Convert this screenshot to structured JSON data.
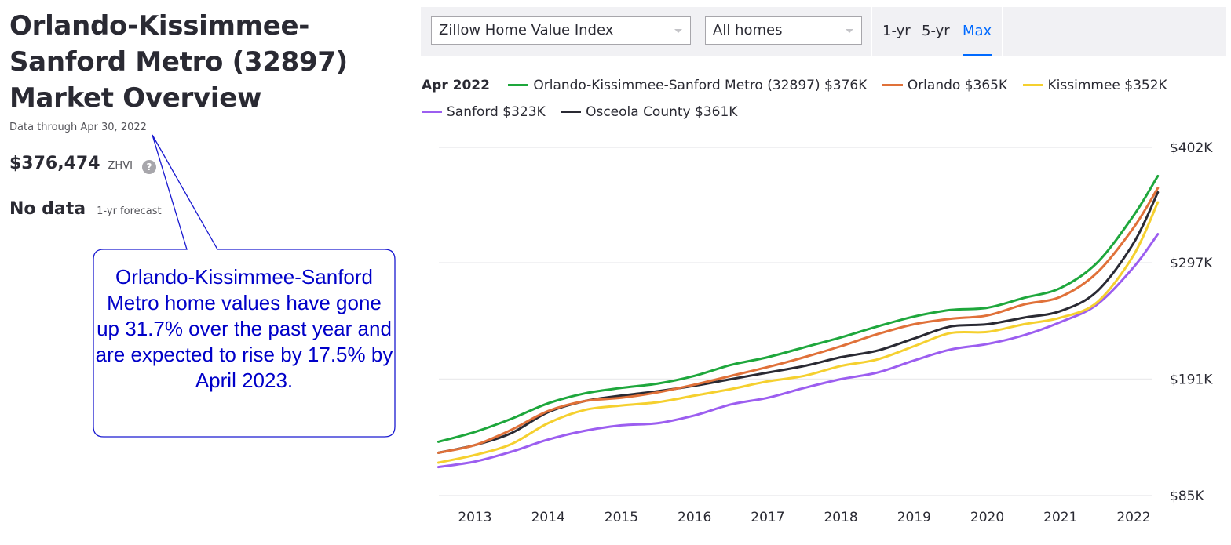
{
  "page": {
    "title": "Orlando-Kissimmee-Sanford Metro (32897) Market Overview",
    "data_through": "Data through Apr 30, 2022",
    "zhvi_value": "$376,474",
    "zhvi_label": "ZHVI",
    "help_icon": "?",
    "forecast_value": "No data",
    "forecast_label": "1-yr forecast"
  },
  "callout": {
    "text": "Orlando-Kissimmee-Sanford Metro home values have gone up 31.7% over the past year and are expected to rise by 17.5% by April 2023.",
    "color": "#0000c8"
  },
  "toolbar": {
    "metric_select": "Zillow Home Value Index",
    "home_type_select": "All homes",
    "ranges": [
      "1-yr",
      "5-yr",
      "Max"
    ],
    "active_range": "Max",
    "accent": "#006aff"
  },
  "legend": {
    "date": "Apr 2022",
    "items": [
      {
        "label": "Orlando-Kissimmee-Sanford Metro (32897) $376K",
        "color": "#1ea73c"
      },
      {
        "label": "Orlando $365K",
        "color": "#e07139"
      },
      {
        "label": "Kissimmee $352K",
        "color": "#f5d02f"
      },
      {
        "label": "Sanford $323K",
        "color": "#9c5ef0"
      },
      {
        "label": "Osceola County $361K",
        "color": "#2a2a33"
      }
    ]
  },
  "chart_data": {
    "type": "line",
    "title": "",
    "xlabel": "",
    "ylabel": "",
    "x": [
      2012.5,
      2013.0,
      2013.5,
      2014.0,
      2014.5,
      2015.0,
      2015.5,
      2016.0,
      2016.5,
      2017.0,
      2017.5,
      2018.0,
      2018.5,
      2019.0,
      2019.5,
      2020.0,
      2020.5,
      2021.0,
      2021.5,
      2022.0,
      2022.33
    ],
    "x_ticks": [
      "2013",
      "2014",
      "2015",
      "2016",
      "2017",
      "2018",
      "2019",
      "2020",
      "2021",
      "2022"
    ],
    "x_tick_values": [
      2013,
      2014,
      2015,
      2016,
      2017,
      2018,
      2019,
      2020,
      2021,
      2022
    ],
    "xlim": [
      2012.5,
      2022.33
    ],
    "y_ticks": [
      "$85K",
      "$191K",
      "$297K",
      "$402K"
    ],
    "y_tick_values": [
      85,
      191,
      297,
      402
    ],
    "ylim": [
      85,
      402
    ],
    "y_units": "thousands USD",
    "grid": true,
    "legend_position": "top",
    "series": [
      {
        "name": "Orlando-Kissimmee-Sanford Metro (32897)",
        "color": "#1ea73c",
        "values": [
          134,
          143,
          155,
          169,
          178,
          183,
          187,
          194,
          204,
          211,
          220,
          229,
          239,
          248,
          254,
          256,
          265,
          274,
          297,
          340,
          376
        ]
      },
      {
        "name": "Orlando",
        "color": "#e07139",
        "values": [
          124,
          131,
          145,
          162,
          171,
          174,
          179,
          186,
          194,
          202,
          211,
          221,
          232,
          241,
          246,
          249,
          259,
          266,
          288,
          329,
          365
        ]
      },
      {
        "name": "Kissimmee",
        "color": "#f5d02f",
        "values": [
          115,
          122,
          132,
          151,
          163,
          167,
          170,
          176,
          182,
          189,
          194,
          203,
          209,
          221,
          233,
          234,
          241,
          247,
          261,
          304,
          352
        ]
      },
      {
        "name": "Sanford",
        "color": "#9c5ef0",
        "values": [
          111,
          116,
          125,
          136,
          144,
          149,
          151,
          158,
          168,
          174,
          183,
          191,
          197,
          208,
          218,
          223,
          231,
          243,
          259,
          293,
          323
        ]
      },
      {
        "name": "Osceola County",
        "color": "#2a2a33",
        "values": [
          124,
          131,
          142,
          161,
          171,
          176,
          180,
          185,
          191,
          197,
          203,
          211,
          217,
          228,
          239,
          241,
          247,
          253,
          271,
          315,
          361
        ]
      }
    ]
  }
}
